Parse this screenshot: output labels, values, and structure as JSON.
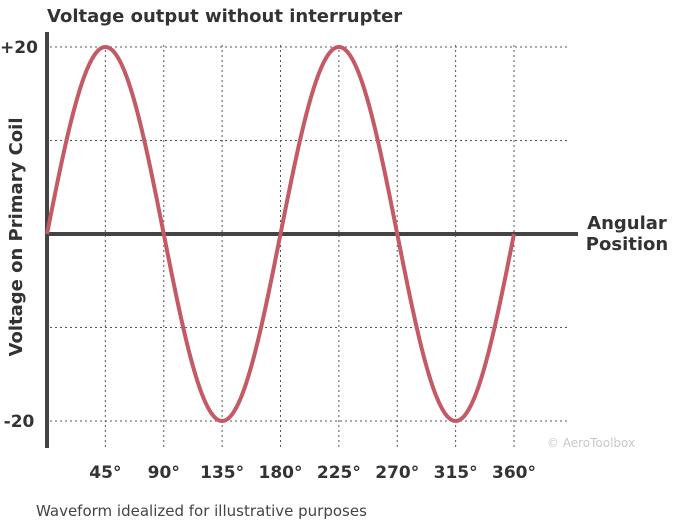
{
  "chart_data": {
    "type": "line",
    "title": "Voltage output without interrupter",
    "xlabel": [
      "Angular",
      "Position"
    ],
    "ylabel": "Voltage on Primary Coil",
    "x_unit": "degrees",
    "xlim": [
      0,
      360
    ],
    "ylim": [
      -20,
      20
    ],
    "x_ticks": [
      45,
      90,
      135,
      180,
      225,
      270,
      315,
      360
    ],
    "x_tick_labels": [
      "45°",
      "90°",
      "135°",
      "180°",
      "225°",
      "270°",
      "315°",
      "360°"
    ],
    "y_ticks": [
      20,
      -20
    ],
    "y_tick_labels": [
      "+20",
      "-20"
    ],
    "y_gridlines": [
      20,
      10,
      -10,
      -20
    ],
    "grid": true,
    "series": [
      {
        "color": "#c45a66",
        "x": [
          0,
          45,
          90,
          135,
          180,
          225,
          270,
          315,
          360
        ],
        "y": [
          0,
          20,
          0,
          -20,
          0,
          20,
          0,
          -20,
          0
        ]
      }
    ]
  },
  "footnote": "Waveform idealized for illustrative purposes",
  "credit": "© AeroToolbox"
}
